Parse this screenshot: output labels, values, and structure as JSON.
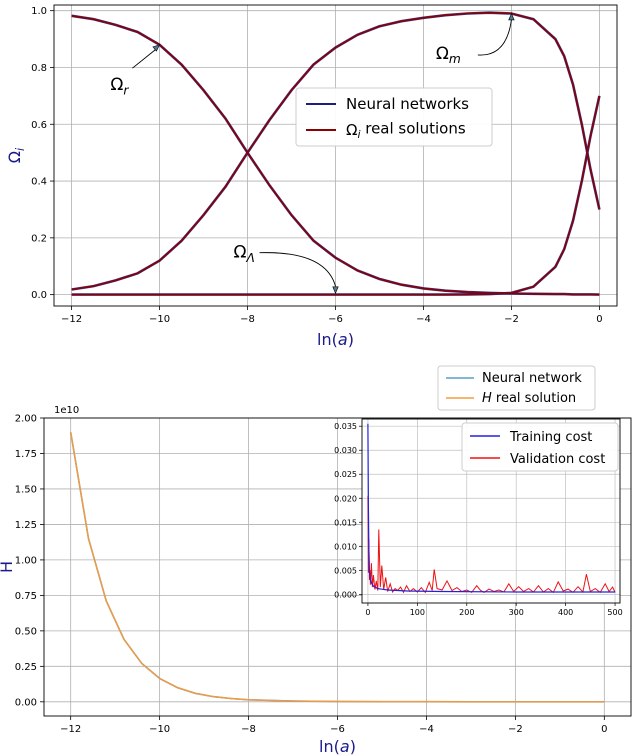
{
  "chart_data": [
    {
      "type": "line",
      "xlabel_pre": "ln(",
      "xlabel_var": "a",
      "xlabel_post": ")",
      "ylabel_base": "Ω",
      "ylabel_sub": "i",
      "xlim": [
        -12.4,
        0.4
      ],
      "ylim": [
        -0.04,
        1.02
      ],
      "xticks": [
        -12,
        -10,
        -8,
        -6,
        -4,
        -2,
        0
      ],
      "xtick_labels": [
        "−12",
        "−10",
        "−8",
        "−6",
        "−4",
        "−2",
        "0"
      ],
      "yticks": [
        0.0,
        0.2,
        0.4,
        0.6,
        0.8,
        1.0
      ],
      "ytick_labels": [
        "0.0",
        "0.2",
        "0.4",
        "0.6",
        "0.8",
        "1.0"
      ],
      "grid": true,
      "legend_position": "center-right",
      "legend": [
        {
          "label": "Neural networks",
          "color": "#1f1f7a"
        },
        {
          "label_base": "Ω",
          "label_sub": "i",
          "label_rest": " real solutions",
          "color": "#8b0000"
        }
      ],
      "x": [
        -12,
        -11.5,
        -11,
        -10.5,
        -10,
        -9.5,
        -9,
        -8.5,
        -8,
        -7.5,
        -7,
        -6.5,
        -6,
        -5.5,
        -5,
        -4.5,
        -4,
        -3.5,
        -3,
        -2.5,
        -2,
        -1.5,
        -1,
        -0.8,
        -0.6,
        -0.4,
        -0.2,
        0
      ],
      "series": [
        {
          "values": [
            0.982,
            0.97,
            0.95,
            0.925,
            0.88,
            0.81,
            0.72,
            0.62,
            0.5,
            0.385,
            0.28,
            0.19,
            0.13,
            0.085,
            0.055,
            0.035,
            0.022,
            0.014,
            0.009,
            0.006,
            0.004,
            0.003,
            0.002,
            0.002,
            0.001,
            0.001,
            0.001,
            0.0
          ]
        },
        {
          "values": [
            0.018,
            0.03,
            0.05,
            0.075,
            0.12,
            0.19,
            0.28,
            0.38,
            0.5,
            0.615,
            0.72,
            0.81,
            0.87,
            0.915,
            0.945,
            0.963,
            0.975,
            0.984,
            0.99,
            0.993,
            0.99,
            0.97,
            0.9,
            0.84,
            0.74,
            0.6,
            0.44,
            0.3
          ]
        },
        {
          "values": [
            0.0,
            0.0,
            0.0,
            0.0,
            0.0,
            0.0,
            0.0,
            0.0,
            0.0,
            0.0,
            0.0,
            0.0,
            0.0,
            0.0,
            0.0,
            0.0,
            0.0,
            0.0,
            0.001,
            0.002,
            0.006,
            0.028,
            0.098,
            0.16,
            0.26,
            0.4,
            0.56,
            0.7
          ]
        }
      ],
      "annotations": [
        {
          "base": "Ω",
          "sub": "r",
          "text_x": -10.8,
          "text_y": 0.72,
          "arrow_x": -10.0,
          "arrow_y": 0.88
        },
        {
          "base": "Ω",
          "sub": "m",
          "text_x": -3.4,
          "text_y": 0.83,
          "arrow_x": -2.0,
          "arrow_y": 0.99
        },
        {
          "base": "Ω",
          "sub": "Λ",
          "text_x": -8.0,
          "text_y": 0.13,
          "arrow_x": -6.0,
          "arrow_y": 0.005
        }
      ]
    },
    {
      "type": "line",
      "xlabel_pre": "ln(",
      "xlabel_var": "a",
      "xlabel_post": ")",
      "ylabel": "H",
      "offset_text": "1e10",
      "xlim": [
        -12.6,
        0.6
      ],
      "ylim": [
        -0.1,
        2.0
      ],
      "xticks": [
        -12,
        -10,
        -8,
        -6,
        -4,
        -2,
        0
      ],
      "xtick_labels": [
        "−12",
        "−10",
        "−8",
        "−6",
        "−4",
        "−2",
        "0"
      ],
      "yticks": [
        0.0,
        0.25,
        0.5,
        0.75,
        1.0,
        1.25,
        1.5,
        1.75,
        2.0
      ],
      "ytick_labels": [
        "0.00",
        "0.25",
        "0.50",
        "0.75",
        "1.00",
        "1.25",
        "1.50",
        "1.75",
        "2.00"
      ],
      "grid": true,
      "legend_position": "outside-top-right",
      "legend": [
        {
          "label": "Neural network",
          "color": "#5a9fc8"
        },
        {
          "label_italic": "H",
          "label_rest": " real solution",
          "color": "#f59a3c"
        }
      ],
      "x": [
        -12,
        -11.6,
        -11.2,
        -10.8,
        -10.4,
        -10,
        -9.6,
        -9.2,
        -8.8,
        -8.4,
        -8,
        -7,
        -6,
        -5,
        -4,
        -3,
        -2,
        -1,
        0
      ],
      "series": [
        {
          "values": [
            1.9,
            1.15,
            0.71,
            0.44,
            0.27,
            0.165,
            0.1,
            0.06,
            0.037,
            0.023,
            0.014,
            0.005,
            0.002,
            0.001,
            0.0005,
            0.0003,
            0.0002,
            0.0001,
            0.0001
          ]
        },
        {
          "values": [
            1.9,
            1.15,
            0.71,
            0.44,
            0.27,
            0.165,
            0.1,
            0.06,
            0.037,
            0.023,
            0.014,
            0.005,
            0.002,
            0.001,
            0.0005,
            0.0003,
            0.0002,
            0.0001,
            0.0001
          ]
        }
      ]
    },
    {
      "type": "line",
      "inset": true,
      "xlim": [
        -12,
        510
      ],
      "ylim": [
        -0.0018,
        0.0365
      ],
      "xticks": [
        0,
        100,
        200,
        300,
        400,
        500
      ],
      "xtick_labels": [
        "0",
        "100",
        "200",
        "300",
        "400",
        "500"
      ],
      "yticks": [
        0.0,
        0.005,
        0.01,
        0.015,
        0.02,
        0.025,
        0.03,
        0.035
      ],
      "ytick_labels": [
        "0.000",
        "0.005",
        "0.010",
        "0.015",
        "0.020",
        "0.025",
        "0.030",
        "0.035"
      ],
      "grid": true,
      "legend_position": "top-right",
      "legend": [
        {
          "label": "Training cost",
          "color": "#2222dd"
        },
        {
          "label": "Validation cost",
          "color": "#ee1111"
        }
      ],
      "series": [
        {
          "x": [
            0,
            1,
            2,
            3,
            5,
            8,
            12,
            20,
            40,
            80,
            150,
            300,
            500
          ],
          "values": [
            0.0355,
            0.018,
            0.009,
            0.005,
            0.003,
            0.0022,
            0.0016,
            0.0012,
            0.0009,
            0.0007,
            0.0006,
            0.0005,
            0.0005
          ]
        },
        {
          "x": [
            0,
            1,
            2,
            3,
            4,
            5,
            7,
            9,
            11,
            14,
            17,
            20,
            22,
            25,
            28,
            32,
            36,
            40,
            45,
            50,
            55,
            60,
            66,
            72,
            78,
            85,
            92,
            100,
            108,
            116,
            124,
            130,
            134,
            140,
            150,
            160,
            170,
            180,
            190,
            200,
            210,
            220,
            228,
            235,
            245,
            255,
            265,
            275,
            285,
            295,
            305,
            315,
            325,
            335,
            345,
            355,
            365,
            375,
            385,
            395,
            405,
            415,
            425,
            435,
            442,
            450,
            460,
            470,
            480,
            488,
            495,
            500
          ],
          "values": [
            0.0205,
            0.0045,
            0.0115,
            0.003,
            0.005,
            0.002,
            0.0065,
            0.0015,
            0.004,
            0.001,
            0.0028,
            0.0008,
            0.0135,
            0.0015,
            0.006,
            0.001,
            0.0035,
            0.0006,
            0.0022,
            0.0005,
            0.0012,
            0.0008,
            0.0015,
            0.0004,
            0.0018,
            0.0006,
            0.0012,
            0.0005,
            0.0014,
            0.0004,
            0.0025,
            0.0008,
            0.0052,
            0.0012,
            0.0009,
            0.0028,
            0.0008,
            0.0014,
            0.0006,
            0.0009,
            0.0004,
            0.0018,
            0.0008,
            0.0004,
            0.0011,
            0.0006,
            0.0009,
            0.0005,
            0.0022,
            0.0006,
            0.0016,
            0.0006,
            0.0012,
            0.0005,
            0.0018,
            0.0005,
            0.0012,
            0.0004,
            0.0026,
            0.0007,
            0.0011,
            0.0004,
            0.0016,
            0.0005,
            0.0042,
            0.0006,
            0.0012,
            0.0004,
            0.0022,
            0.0006,
            0.0015,
            0.0004
          ]
        }
      ]
    }
  ]
}
